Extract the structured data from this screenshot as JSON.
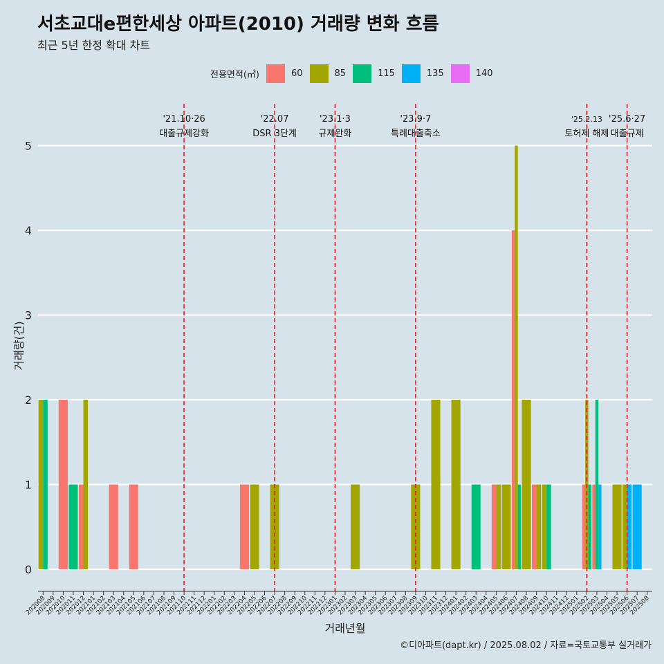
{
  "header": {
    "title": "서초교대e편한세상 아파트(2010) 거래량 변화 흐름",
    "subtitle": "최근 5년 한정 확대 차트"
  },
  "legend": {
    "title": "전용면적(㎡)",
    "items": [
      {
        "label": "60",
        "color": "#f8766d"
      },
      {
        "label": "85",
        "color": "#a3a500"
      },
      {
        "label": "115",
        "color": "#00bf7d"
      },
      {
        "label": "135",
        "color": "#00b0f6"
      },
      {
        "label": "140",
        "color": "#e76bf3"
      }
    ]
  },
  "footer": {
    "caption": "©디아파트(dapt.kr) / 2025.08.02 / 자료=국토교통부 실거래가"
  },
  "chart_data": {
    "type": "bar",
    "xlabel": "거래년월",
    "ylabel": "거래량(건)",
    "ylim": [
      0,
      5
    ],
    "yticks": [
      0,
      1,
      2,
      3,
      4,
      5
    ],
    "grid": true,
    "legend_position": "top",
    "categories": [
      "202008",
      "202009",
      "202010",
      "202011",
      "202012",
      "202101",
      "202102",
      "202103",
      "202104",
      "202105",
      "202106",
      "202107",
      "202108",
      "202109",
      "202110",
      "202111",
      "202112",
      "202201",
      "202202",
      "202203",
      "202204",
      "202205",
      "202206",
      "202207",
      "202208",
      "202209",
      "202210",
      "202211",
      "202212",
      "202301",
      "202302",
      "202303",
      "202304",
      "202305",
      "202306",
      "202307",
      "202308",
      "202309",
      "202310",
      "202311",
      "202312",
      "202401",
      "202402",
      "202403",
      "202404",
      "202405",
      "202406",
      "202407",
      "202408",
      "202409",
      "202410",
      "202411",
      "202412",
      "202501",
      "202502",
      "202503",
      "202504",
      "202505",
      "202506",
      "202507",
      "202508"
    ],
    "bars": [
      {
        "month": "202008",
        "series": "85",
        "value": 2
      },
      {
        "month": "202008",
        "series": "115",
        "value": 2
      },
      {
        "month": "202010",
        "series": "60",
        "value": 2
      },
      {
        "month": "202011",
        "series": "115",
        "value": 1
      },
      {
        "month": "202012",
        "series": "60",
        "value": 1
      },
      {
        "month": "202012",
        "series": "85",
        "value": 2
      },
      {
        "month": "202103",
        "series": "60",
        "value": 1
      },
      {
        "month": "202105",
        "series": "60",
        "value": 1
      },
      {
        "month": "202204",
        "series": "60",
        "value": 1
      },
      {
        "month": "202205",
        "series": "85",
        "value": 1
      },
      {
        "month": "202207",
        "series": "85",
        "value": 1
      },
      {
        "month": "202303",
        "series": "85",
        "value": 1
      },
      {
        "month": "202309",
        "series": "85",
        "value": 1
      },
      {
        "month": "202311",
        "series": "85",
        "value": 2
      },
      {
        "month": "202401",
        "series": "85",
        "value": 2
      },
      {
        "month": "202403",
        "series": "115",
        "value": 1
      },
      {
        "month": "202405",
        "series": "60",
        "value": 1
      },
      {
        "month": "202405",
        "series": "85",
        "value": 1
      },
      {
        "month": "202406",
        "series": "85",
        "value": 1
      },
      {
        "month": "202407",
        "series": "60",
        "value": 4
      },
      {
        "month": "202407",
        "series": "85",
        "value": 5
      },
      {
        "month": "202407",
        "series": "115",
        "value": 1
      },
      {
        "month": "202408",
        "series": "85",
        "value": 2
      },
      {
        "month": "202409",
        "series": "60",
        "value": 1
      },
      {
        "month": "202409",
        "series": "85",
        "value": 1
      },
      {
        "month": "202410",
        "series": "85",
        "value": 1
      },
      {
        "month": "202410",
        "series": "115",
        "value": 1
      },
      {
        "month": "202502",
        "series": "60",
        "value": 1
      },
      {
        "month": "202502",
        "series": "85",
        "value": 2
      },
      {
        "month": "202502",
        "series": "115",
        "value": 1
      },
      {
        "month": "202503",
        "series": "60",
        "value": 1
      },
      {
        "month": "202503",
        "series": "115",
        "value": 2
      },
      {
        "month": "202503",
        "series": "135",
        "value": 1
      },
      {
        "month": "202505",
        "series": "85",
        "value": 1
      },
      {
        "month": "202506",
        "series": "85",
        "value": 1
      },
      {
        "month": "202506",
        "series": "135",
        "value": 1
      },
      {
        "month": "202507",
        "series": "135",
        "value": 1
      }
    ],
    "annotations": [
      {
        "month": "202110",
        "date": "'21.10·26",
        "label": "대출규제강화"
      },
      {
        "month": "202207",
        "date": "'22.07",
        "label": "DSR 3단계"
      },
      {
        "month": "202301",
        "date": "'23.1·3",
        "label": "규제완화"
      },
      {
        "month": "202309",
        "date": "'23.9·7",
        "label": "특례대출축소"
      },
      {
        "month": "202502",
        "date": "'25.2.13",
        "label": "토허제 해제"
      },
      {
        "month": "202506",
        "date": "'25.6·27",
        "label": "대출규제"
      }
    ],
    "annotation_line_color": "#e41a1c"
  }
}
